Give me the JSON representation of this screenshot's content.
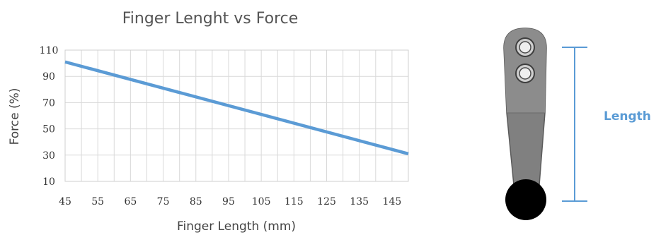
{
  "chart_data": {
    "type": "line",
    "title": "Finger Lenght vs Force",
    "xlabel": "Finger Length (mm)",
    "ylabel": "Force (%)",
    "x_ticks": [
      45,
      55,
      65,
      75,
      85,
      95,
      105,
      115,
      125,
      135,
      145
    ],
    "y_ticks": [
      10,
      30,
      50,
      70,
      90,
      110
    ],
    "xlim": [
      45,
      150
    ],
    "ylim": [
      10,
      110
    ],
    "grid": true,
    "series": [
      {
        "x": [
          45,
          150
        ],
        "y": [
          101,
          31
        ],
        "color": "#5b9bd5"
      }
    ]
  },
  "diagram": {
    "length_label": "Length",
    "dimension_color": "#5a9bd5"
  }
}
